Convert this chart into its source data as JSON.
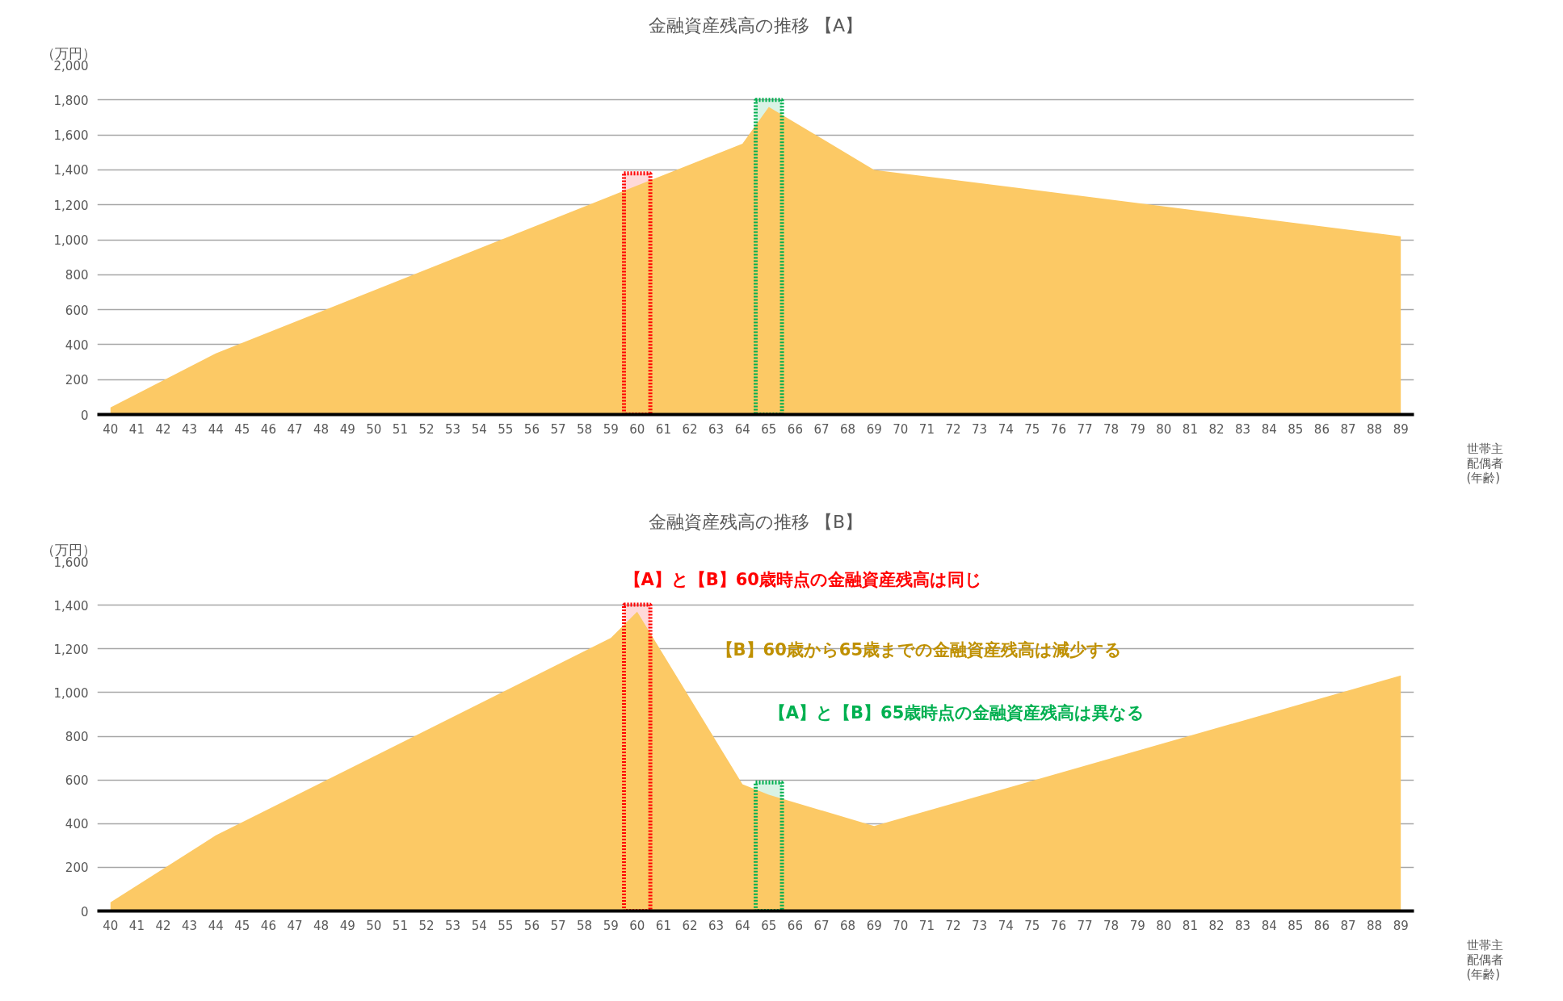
{
  "chart_data": [
    {
      "type": "area",
      "title": "金融資産残高の推移 【A】",
      "ylabel": "（万円）",
      "xlabel": "世帯主配偶者(年齢)",
      "series": [
        {
          "color": "#fcc965",
          "x": [
            40,
            44,
            64,
            65,
            69,
            89
          ],
          "values": [
            40,
            350,
            1550,
            1760,
            1400,
            1020
          ]
        }
      ],
      "xlim": [
        39.5,
        89.5
      ],
      "xticks": [
        40,
        41,
        42,
        43,
        44,
        45,
        46,
        47,
        48,
        49,
        50,
        51,
        52,
        53,
        54,
        55,
        56,
        57,
        58,
        59,
        60,
        61,
        62,
        63,
        64,
        65,
        66,
        67,
        68,
        69,
        70,
        71,
        72,
        73,
        74,
        75,
        76,
        77,
        78,
        79,
        80,
        81,
        82,
        83,
        84,
        85,
        86,
        87,
        88,
        89
      ],
      "ylim": [
        0,
        2000
      ],
      "yticks": [
        {
          "value": 0,
          "label": "0"
        },
        {
          "value": 200,
          "label": "200"
        },
        {
          "value": 400,
          "label": "400"
        },
        {
          "value": 600,
          "label": "600"
        },
        {
          "value": 800,
          "label": "800"
        },
        {
          "value": 1000,
          "label": "1,000"
        },
        {
          "value": 1200,
          "label": "1,200"
        },
        {
          "value": 1400,
          "label": "1,400"
        },
        {
          "value": 1600,
          "label": "1,600"
        },
        {
          "value": 1800,
          "label": "1,800"
        },
        {
          "value": 2000,
          "label": "2,000"
        }
      ],
      "grid": "y",
      "bands": [
        {
          "axis": "x",
          "from": 59.5,
          "to": 60.5,
          "color": "#ff0000"
        },
        {
          "axis": "x",
          "from": 64.5,
          "to": 65.5,
          "color": "#00b050"
        }
      ]
    },
    {
      "type": "area",
      "title": "金融資産残高の推移 【B】",
      "ylabel": "（万円）",
      "xlabel": "世帯主配偶者(年齢)",
      "series": [
        {
          "color": "#fcc965",
          "x": [
            40,
            44,
            59,
            60,
            64,
            65,
            69,
            89
          ],
          "values": [
            40,
            346,
            1250,
            1370,
            580,
            532,
            389,
            1078
          ]
        }
      ],
      "xlim": [
        39.5,
        89.5
      ],
      "xticks": [
        40,
        41,
        42,
        43,
        44,
        45,
        46,
        47,
        48,
        49,
        50,
        51,
        52,
        53,
        54,
        55,
        56,
        57,
        58,
        59,
        60,
        61,
        62,
        63,
        64,
        65,
        66,
        67,
        68,
        69,
        70,
        71,
        72,
        73,
        74,
        75,
        76,
        77,
        78,
        79,
        80,
        81,
        82,
        83,
        84,
        85,
        86,
        87,
        88,
        89
      ],
      "ylim": [
        0,
        1600
      ],
      "yticks": [
        {
          "value": 0,
          "label": "0"
        },
        {
          "value": 200,
          "label": "200"
        },
        {
          "value": 400,
          "label": "400"
        },
        {
          "value": 600,
          "label": "600"
        },
        {
          "value": 800,
          "label": "800"
        },
        {
          "value": 1000,
          "label": "1,000"
        },
        {
          "value": 1200,
          "label": "1,200"
        },
        {
          "value": 1400,
          "label": "1,400"
        },
        {
          "value": 1600,
          "label": "1,600"
        }
      ],
      "grid": "y",
      "bands": [
        {
          "axis": "x",
          "from": 59.5,
          "to": 60.5,
          "color": "#ff0000"
        },
        {
          "axis": "x",
          "from": 64.5,
          "to": 65.5,
          "color": "#00b050"
        }
      ],
      "annotations": [
        "【A】と【B】60歳時点の金融資産残高は同じ",
        "【B】60歳から65歳までの金融資産残高は減少する",
        "【A】と【B】65歳時点の金融資産残高は異なる"
      ]
    }
  ]
}
